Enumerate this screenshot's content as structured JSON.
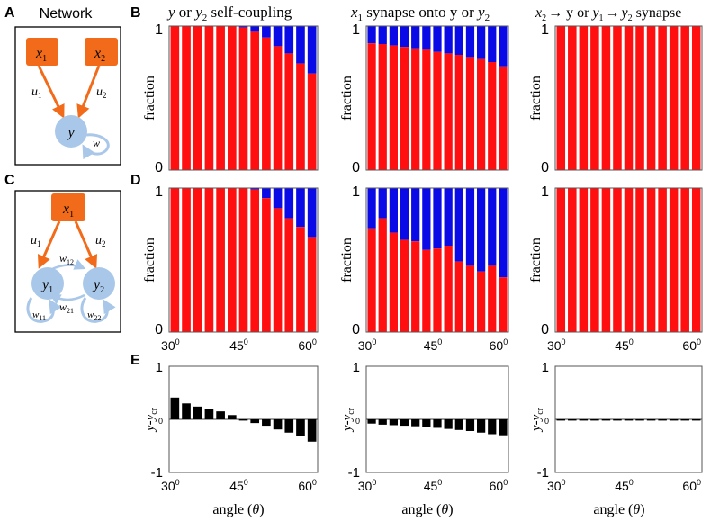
{
  "panel_letters": {
    "A": "A",
    "B": "B",
    "C": "C",
    "D": "D",
    "E": "E"
  },
  "network_title": "Network",
  "nodes": {
    "x": "x",
    "y": "y",
    "u": "u",
    "w": "w",
    "sub1": "1",
    "sub2": "2",
    "sub11": "11",
    "sub12": "12",
    "sub21": "21",
    "sub22": "22"
  },
  "column_titles": {
    "col1": {
      "a": "y",
      "b": " or ",
      "c": "y",
      "c_sub": "2",
      "d": " self-coupling"
    },
    "col2": {
      "a": "x",
      "a_sub": "1",
      "b": " synapse onto y or ",
      "c": "y",
      "c_sub": "2"
    },
    "col3": {
      "a": "x",
      "a_sub": "2",
      "arrow1": "→",
      "b": " y or ",
      "c": "y",
      "c_sub": "1",
      "arrow2": "→",
      "d": "y",
      "d_sub": "2",
      "e": " synapse"
    }
  },
  "axis": {
    "ylabel_fraction": "fraction",
    "frac_ticks": [
      "0",
      "1"
    ],
    "diff_ylabel_main": "y-y",
    "diff_ylabel_sub": "cr",
    "diff_ticks": [
      "1",
      "0",
      "-1"
    ],
    "xticks": [
      {
        "base": "30",
        "sup": "0"
      },
      {
        "base": "45",
        "sup": "0"
      },
      {
        "base": "60",
        "sup": "0"
      }
    ],
    "xlabel_main": "angle (",
    "xlabel_theta": "θ",
    "xlabel_close": ")"
  },
  "colors": {
    "red": "#ff0f0f",
    "blue": "#0a0ae6",
    "orange": "#f26b1a",
    "node": "#a9c7e8",
    "black": "#000000"
  },
  "chart_data": [
    {
      "id": "B1",
      "type": "bar",
      "stacked": true,
      "ylabel": "fraction",
      "ylim": [
        0,
        1
      ],
      "angles": [
        30,
        32.5,
        35,
        37.5,
        40,
        42.5,
        45,
        47.5,
        50,
        52.5,
        55,
        57.5,
        60
      ],
      "series": [
        {
          "name": "red",
          "values": [
            1,
            1,
            1,
            1,
            1,
            1,
            0.99,
            0.96,
            0.92,
            0.86,
            0.81,
            0.74,
            0.67
          ]
        }
      ]
    },
    {
      "id": "B2",
      "type": "bar",
      "stacked": true,
      "ylabel": "fraction",
      "ylim": [
        0,
        1
      ],
      "angles": [
        30,
        32.5,
        35,
        37.5,
        40,
        42.5,
        45,
        47.5,
        50,
        52.5,
        55,
        57.5,
        60
      ],
      "series": [
        {
          "name": "red",
          "values": [
            0.88,
            0.875,
            0.865,
            0.855,
            0.845,
            0.835,
            0.82,
            0.81,
            0.8,
            0.785,
            0.77,
            0.75,
            0.72
          ]
        }
      ]
    },
    {
      "id": "B3",
      "type": "bar",
      "stacked": true,
      "ylabel": "fraction",
      "ylim": [
        0,
        1
      ],
      "angles": [
        30,
        32.5,
        35,
        37.5,
        40,
        42.5,
        45,
        47.5,
        50,
        52.5,
        55,
        57.5,
        60
      ],
      "series": [
        {
          "name": "red",
          "values": [
            1,
            1,
            1,
            1,
            1,
            1,
            1,
            1,
            1,
            1,
            1,
            1,
            1
          ]
        }
      ]
    },
    {
      "id": "D1",
      "type": "bar",
      "stacked": true,
      "ylabel": "fraction",
      "ylim": [
        0,
        1
      ],
      "angles": [
        30,
        32.5,
        35,
        37.5,
        40,
        42.5,
        45,
        47.5,
        50,
        52.5,
        55,
        57.5,
        60
      ],
      "series": [
        {
          "name": "red",
          "values": [
            1,
            1,
            1,
            1,
            1,
            1,
            1,
            0.99,
            0.93,
            0.86,
            0.79,
            0.73,
            0.66
          ]
        }
      ]
    },
    {
      "id": "D2",
      "type": "bar",
      "stacked": true,
      "ylabel": "fraction",
      "ylim": [
        0,
        1
      ],
      "angles": [
        30,
        32.5,
        35,
        37.5,
        40,
        42.5,
        45,
        47.5,
        50,
        52.5,
        55,
        57.5,
        60
      ],
      "series": [
        {
          "name": "red",
          "values": [
            0.72,
            0.79,
            0.69,
            0.64,
            0.63,
            0.57,
            0.58,
            0.6,
            0.49,
            0.46,
            0.42,
            0.46,
            0.38
          ]
        }
      ]
    },
    {
      "id": "D3",
      "type": "bar",
      "stacked": true,
      "ylabel": "fraction",
      "ylim": [
        0,
        1
      ],
      "angles": [
        30,
        32.5,
        35,
        37.5,
        40,
        42.5,
        45,
        47.5,
        50,
        52.5,
        55,
        57.5,
        60
      ],
      "series": [
        {
          "name": "red",
          "values": [
            1,
            1,
            1,
            1,
            1,
            1,
            1,
            1,
            1,
            1,
            1,
            1,
            1
          ]
        }
      ]
    },
    {
      "id": "E1",
      "type": "bar",
      "ylabel": "y-y_cr",
      "ylim": [
        -1,
        1
      ],
      "angles": [
        30,
        32.5,
        35,
        37.5,
        40,
        42.5,
        45,
        47.5,
        50,
        52.5,
        55,
        57.5,
        60
      ],
      "series": [
        {
          "name": "diff",
          "values": [
            0.41,
            0.3,
            0.24,
            0.2,
            0.15,
            0.08,
            0,
            -0.07,
            -0.12,
            -0.19,
            -0.25,
            -0.32,
            -0.42
          ]
        }
      ]
    },
    {
      "id": "E2",
      "type": "bar",
      "ylabel": "y-y_cr",
      "ylim": [
        -1,
        1
      ],
      "angles": [
        30,
        32.5,
        35,
        37.5,
        40,
        42.5,
        45,
        47.5,
        50,
        52.5,
        55,
        57.5,
        60
      ],
      "series": [
        {
          "name": "diff",
          "values": [
            -0.08,
            -0.1,
            -0.11,
            -0.12,
            -0.13,
            -0.15,
            -0.16,
            -0.18,
            -0.2,
            -0.22,
            -0.25,
            -0.28,
            -0.3
          ]
        }
      ]
    },
    {
      "id": "E3",
      "type": "bar",
      "ylabel": "y-y_cr",
      "ylim": [
        -1,
        1
      ],
      "angles": [
        30,
        32.5,
        35,
        37.5,
        40,
        42.5,
        45,
        47.5,
        50,
        52.5,
        55,
        57.5,
        60
      ],
      "series": [
        {
          "name": "diff",
          "values": [
            0,
            0,
            0,
            0,
            0,
            0,
            0,
            0,
            0,
            0,
            0,
            0,
            0
          ]
        }
      ]
    }
  ]
}
